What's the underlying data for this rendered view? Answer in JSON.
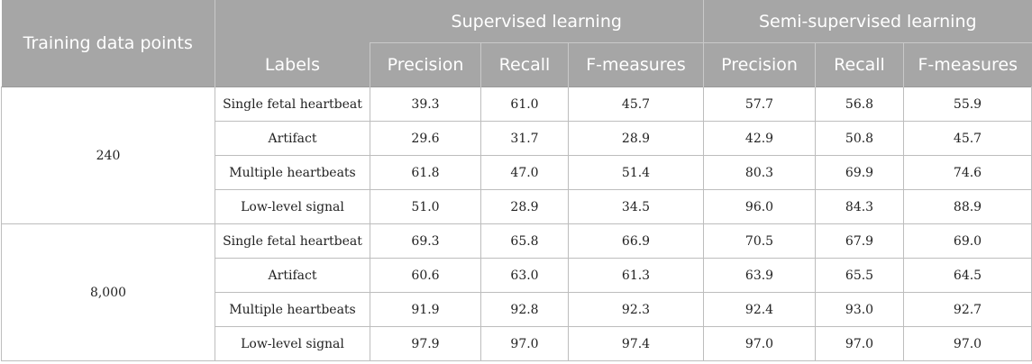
{
  "header": {
    "training_col": "Training data points",
    "labels_col": "Labels",
    "groups": [
      "Supervised learning",
      "Semi-supervised learning"
    ],
    "metrics": [
      "Precision",
      "Recall",
      "F-measures"
    ]
  },
  "rows": [
    {
      "points": "240",
      "label": "Single fetal heartbeat",
      "sup": [
        "39.3",
        "61.0",
        "45.7"
      ],
      "semi": [
        "57.7",
        "56.8",
        "55.9"
      ]
    },
    {
      "label": "Artifact",
      "sup": [
        "29.6",
        "31.7",
        "28.9"
      ],
      "semi": [
        "42.9",
        "50.8",
        "45.7"
      ]
    },
    {
      "label": "Multiple heartbeats",
      "sup": [
        "61.8",
        "47.0",
        "51.4"
      ],
      "semi": [
        "80.3",
        "69.9",
        "74.6"
      ]
    },
    {
      "label": "Low-level signal",
      "sup": [
        "51.0",
        "28.9",
        "34.5"
      ],
      "semi": [
        "96.0",
        "84.3",
        "88.9"
      ]
    },
    {
      "points": "8,000",
      "label": "Single fetal heartbeat",
      "sup": [
        "69.3",
        "65.8",
        "66.9"
      ],
      "semi": [
        "70.5",
        "67.9",
        "69.0"
      ]
    },
    {
      "label": "Artifact",
      "sup": [
        "60.6",
        "63.0",
        "61.3"
      ],
      "semi": [
        "63.9",
        "65.5",
        "64.5"
      ]
    },
    {
      "label": "Multiple heartbeats",
      "sup": [
        "91.9",
        "92.8",
        "92.3"
      ],
      "semi": [
        "92.4",
        "93.0",
        "92.7"
      ]
    },
    {
      "label": "Low-level signal",
      "sup": [
        "97.9",
        "97.0",
        "97.4"
      ],
      "semi": [
        "97.0",
        "97.0",
        "97.0"
      ]
    }
  ]
}
